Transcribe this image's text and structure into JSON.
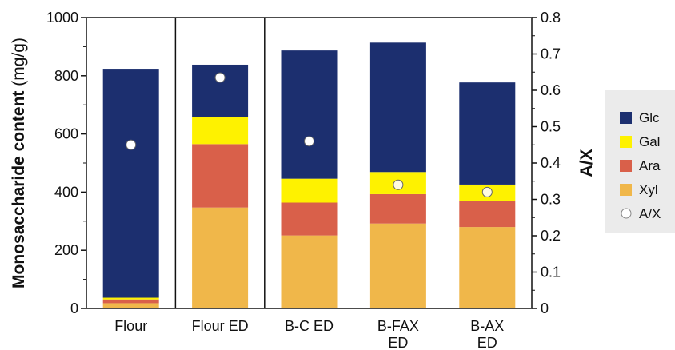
{
  "chart_data": {
    "type": "bar",
    "stacked": true,
    "categories": [
      "Flour",
      "Flour ED",
      "B-C ED",
      "B-FAX ED",
      "B-AX ED"
    ],
    "category_label_lines": [
      [
        "Flour"
      ],
      [
        "Flour ED"
      ],
      [
        "B-C ED"
      ],
      [
        "B-FAX",
        "ED"
      ],
      [
        "B-AX",
        "ED"
      ]
    ],
    "series": [
      {
        "name": "Xyl",
        "color": "#f0b74a",
        "values": [
          18,
          347,
          251,
          292,
          280
        ]
      },
      {
        "name": "Ara",
        "color": "#d9604a",
        "values": [
          13,
          218,
          113,
          101,
          90
        ]
      },
      {
        "name": "Gal",
        "color": "#fef200",
        "values": [
          6,
          93,
          82,
          76,
          56
        ]
      },
      {
        "name": "Glc",
        "color": "#1c2f6f",
        "values": [
          787,
          180,
          441,
          445,
          351
        ]
      }
    ],
    "secondary_series": {
      "name": "A/X",
      "type": "scatter",
      "axis": "right",
      "values": [
        0.45,
        0.635,
        0.46,
        0.34,
        0.32
      ],
      "marker_fill": [
        "#ffffff",
        "#ffffff",
        "#ffffff",
        "#fffbe0",
        "#fffbe0"
      ]
    },
    "ylabel_left": {
      "bold": "Monosaccharide content",
      "normal": " (mg/g)"
    },
    "ylabel_right": "A/X",
    "ylim_left": [
      0,
      1000
    ],
    "yticks_left": [
      "0",
      "200",
      "400",
      "600",
      "800",
      "1000"
    ],
    "ylim_right": [
      0,
      0.8
    ],
    "yticks_right": [
      "0",
      "0.1",
      "0.2",
      "0.3",
      "0.4",
      "0.5",
      "0.6",
      "0.7",
      "0.8"
    ],
    "group_dividers_after": [
      "Flour",
      "Flour ED"
    ],
    "legend": {
      "placement": "right",
      "items": [
        {
          "label": "Glc",
          "kind": "square",
          "color": "#1c2f6f"
        },
        {
          "label": "Gal",
          "kind": "square",
          "color": "#fef200"
        },
        {
          "label": "Ara",
          "kind": "square",
          "color": "#d9604a"
        },
        {
          "label": "Xyl",
          "kind": "square",
          "color": "#f0b74a"
        },
        {
          "label": "A/X",
          "kind": "circle",
          "color": "#ffffff"
        }
      ]
    },
    "grid": false
  }
}
